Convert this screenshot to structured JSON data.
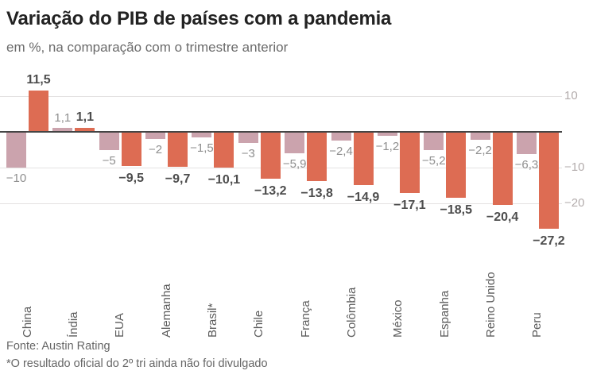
{
  "header": {
    "title": "Variação do PIB de países com a pandemia",
    "subtitle": "em %, na comparação com o trimestre anterior"
  },
  "chart_data": {
    "type": "bar",
    "title": "Variação do PIB de países com a pandemia",
    "subtitle": "em %, na comparação com o trimestre anterior",
    "unit": "%",
    "categories": [
      "China",
      "Índia",
      "EUA",
      "Alemanha",
      "Brasil*",
      "Chile",
      "França",
      "Colômbia",
      "México",
      "Espanha",
      "Reino Unido",
      "Peru"
    ],
    "series": [
      {
        "name": "series-light",
        "color": "#cba3ad",
        "values": [
          -10,
          1.1,
          -5,
          -2,
          -1.5,
          -3,
          -5.9,
          -2.4,
          -1.2,
          -5.2,
          -2.2,
          -6.3
        ],
        "labels": [
          "−10",
          "1,1",
          "−5",
          "−2",
          "−1,5",
          "−3",
          "−5,9",
          "−2,4",
          "−1,2",
          "−5,2",
          "−2,2",
          "−6,3"
        ]
      },
      {
        "name": "series-dark",
        "color": "#dd6c53",
        "values": [
          11.5,
          1.1,
          -9.5,
          -9.7,
          -10.1,
          -13.2,
          -13.8,
          -14.9,
          -17.1,
          -18.5,
          -20.4,
          -27.2
        ],
        "labels": [
          "11,5",
          "1,1",
          "−9,5",
          "−9,7",
          "−10,1",
          "−13,2",
          "−13,8",
          "−14,9",
          "−17,1",
          "−18,5",
          "−20,4",
          "−27,2"
        ]
      }
    ],
    "y_axis": {
      "position": "right",
      "ticks": [
        10,
        -10,
        -20
      ],
      "tick_labels": [
        "10",
        "−10",
        "−20"
      ],
      "range": [
        -30,
        15
      ]
    },
    "grid": true,
    "legend": false,
    "colors": {
      "bar_light": "#cba3ad",
      "bar_dark": "#dd6c53",
      "zero_line": "#454545",
      "gridline": "#e4e2e2"
    }
  },
  "footer": {
    "source": "Fonte: Austin Rating",
    "note": "*O resultado oficial do 2º tri ainda não foi divulgado"
  }
}
